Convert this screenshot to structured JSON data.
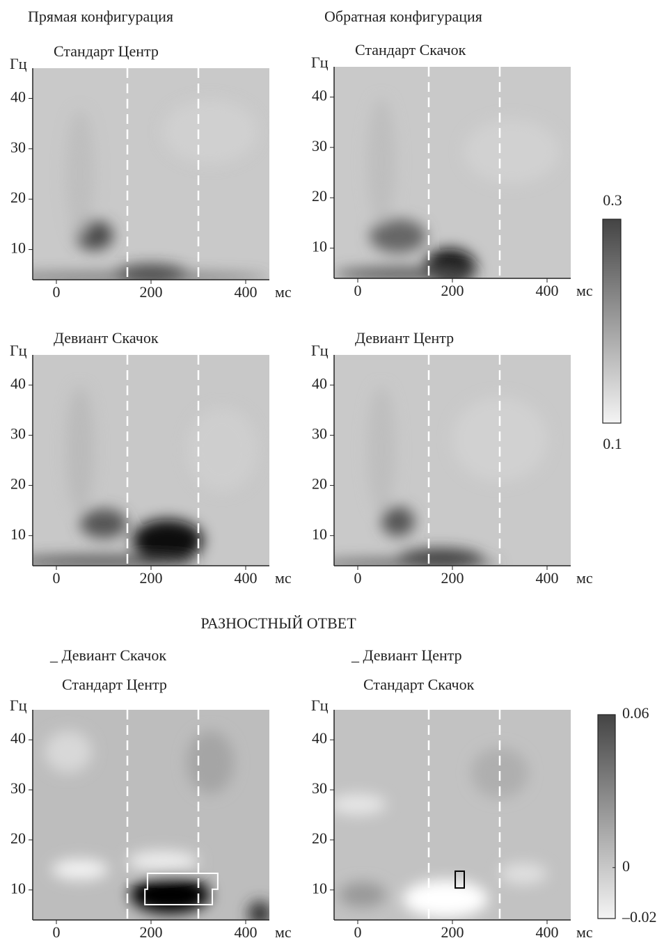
{
  "column_titles": [
    "Прямая конфигурация",
    "Обратная конфигурация"
  ],
  "section_title": "РАЗНОСТНЫЙ ОТВЕТ",
  "chart_data": [
    {
      "type": "heatmap",
      "title": "Стандарт Центр",
      "x_unit": "мс",
      "y_unit": "Гц",
      "xlim": [
        -50,
        450
      ],
      "ylim": [
        4,
        46
      ],
      "xticks": [
        0,
        200,
        400
      ],
      "yticks": [
        10,
        20,
        30,
        40
      ],
      "vlines": [
        150,
        300
      ],
      "colorbar": 0
    },
    {
      "type": "heatmap",
      "title": "Стандарт Скачок",
      "x_unit": "мс",
      "y_unit": "Гц",
      "xlim": [
        -50,
        450
      ],
      "ylim": [
        4,
        46
      ],
      "xticks": [
        0,
        200,
        400
      ],
      "yticks": [
        10,
        20,
        30,
        40
      ],
      "vlines": [
        150,
        300
      ],
      "colorbar": 0
    },
    {
      "type": "heatmap",
      "title": "Девиант Скачок",
      "x_unit": "мс",
      "y_unit": "Гц",
      "xlim": [
        -50,
        450
      ],
      "ylim": [
        4,
        46
      ],
      "xticks": [
        0,
        200,
        400
      ],
      "yticks": [
        10,
        20,
        30,
        40
      ],
      "vlines": [
        150,
        300
      ],
      "colorbar": 0
    },
    {
      "type": "heatmap",
      "title": "Девиант Центр",
      "x_unit": "мс",
      "y_unit": "Гц",
      "xlim": [
        -50,
        450
      ],
      "ylim": [
        4,
        46
      ],
      "xticks": [
        0,
        200,
        400
      ],
      "yticks": [
        10,
        20,
        30,
        40
      ],
      "vlines": [
        150,
        300
      ],
      "colorbar": 0
    },
    {
      "type": "heatmap",
      "title": "_ Девиант Скачок",
      "subtitle": "Стандарт Центр",
      "x_unit": "мс",
      "y_unit": "Гц",
      "xlim": [
        -50,
        450
      ],
      "ylim": [
        4,
        46
      ],
      "xticks": [
        0,
        200,
        400
      ],
      "yticks": [
        10,
        20,
        30,
        40
      ],
      "vlines": [
        150,
        300
      ],
      "colorbar": 1
    },
    {
      "type": "heatmap",
      "title": "_ Девиант Центр",
      "subtitle": "Стандарт Скачок",
      "x_unit": "мс",
      "y_unit": "Гц",
      "xlim": [
        -50,
        450
      ],
      "ylim": [
        4,
        46
      ],
      "xticks": [
        0,
        200,
        400
      ],
      "yticks": [
        10,
        20,
        30,
        40
      ],
      "vlines": [
        150,
        300
      ],
      "colorbar": 1
    }
  ],
  "colorbars": [
    {
      "clim": [
        0.1,
        0.3
      ],
      "ticks": [
        0.1,
        0.3
      ]
    },
    {
      "clim": [
        -0.02,
        0.06
      ],
      "ticks": [
        {
          "value": -0.02,
          "label": "–0.02"
        },
        0,
        0.06
      ]
    }
  ]
}
